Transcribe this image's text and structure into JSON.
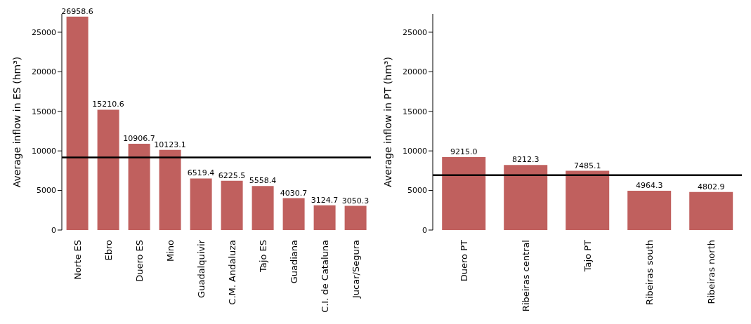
{
  "chart_data": [
    {
      "type": "bar",
      "ylabel": "Average inflow in ES (hm³)",
      "categories": [
        "Norte ES",
        "Ebro",
        "Duero ES",
        "Mino",
        "Guadalquivir",
        "C.M. Andaluza",
        "Tajo ES",
        "Guadiana",
        "C.I. de Cataluna",
        "Jucar/Segura"
      ],
      "values": [
        26958.6,
        15210.6,
        10906.7,
        10123.1,
        6519.4,
        6225.5,
        5558.4,
        4030.7,
        3124.7,
        3050.3
      ],
      "value_labels": [
        "26958.6",
        "15210.6",
        "10906.7",
        "10123.1",
        "6519.4",
        "6225.5",
        "5558.4",
        "4030.7",
        "3124.7",
        "3050.3"
      ],
      "color": "#c0605e",
      "ylim": [
        0,
        27300
      ],
      "yticks": [
        0,
        5000,
        10000,
        15000,
        20000,
        25000
      ],
      "ref_lines": [
        {
          "axis": "y",
          "value": 9171,
          "color": "#000000"
        }
      ]
    },
    {
      "type": "bar",
      "ylabel": "Average inflow in PT (hm³)",
      "categories": [
        "Duero PT",
        "Ribeiras central",
        "Tajo PT",
        "Ribeiras south",
        "Ribeiras north"
      ],
      "values": [
        9215.0,
        8212.3,
        7485.1,
        4964.3,
        4802.9
      ],
      "value_labels": [
        "9215.0",
        "8212.3",
        "7485.1",
        "4964.3",
        "4802.9"
      ],
      "color": "#c0605e",
      "ylim": [
        0,
        27300
      ],
      "yticks": [
        0,
        5000,
        10000,
        15000,
        20000,
        25000
      ],
      "ref_lines": [
        {
          "axis": "y",
          "value": 6936,
          "color": "#000000"
        }
      ]
    }
  ]
}
